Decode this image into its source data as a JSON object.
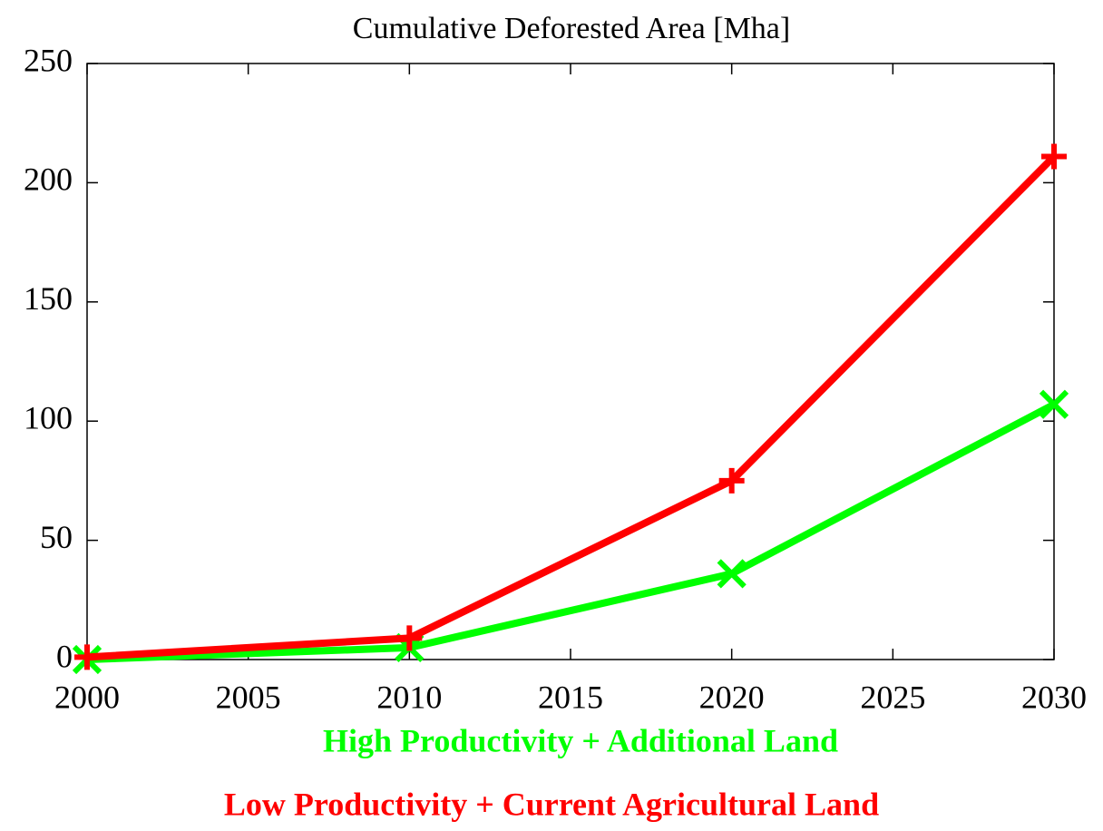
{
  "chart_data": {
    "type": "line",
    "title": "Cumulative Deforested Area [Mha]",
    "x": [
      2000,
      2010,
      2020,
      2030
    ],
    "series": [
      {
        "name": "High Productivity + Additional Land",
        "color": "#00ff00",
        "marker": "x",
        "values": [
          0,
          5,
          36,
          107
        ]
      },
      {
        "name": "Low Productivity + Current Agricultural Land",
        "color": "#ff0000",
        "marker": "+",
        "values": [
          1,
          9,
          75,
          211
        ]
      }
    ],
    "xlim": [
      2000,
      2030
    ],
    "xticks": [
      2000,
      2005,
      2010,
      2015,
      2020,
      2025,
      2030
    ],
    "ylim": [
      0,
      250
    ],
    "yticks": [
      0,
      50,
      100,
      150,
      200,
      250
    ]
  }
}
